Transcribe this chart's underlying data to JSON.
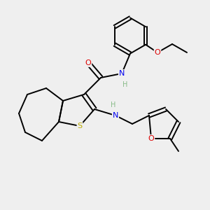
{
  "background_color": "#efefef",
  "atom_colors": {
    "C": "#000000",
    "N": "#0000ee",
    "O": "#dd0000",
    "S": "#bbaa00",
    "H": "#88bb88"
  },
  "figsize": [
    3.0,
    3.0
  ],
  "dpi": 100
}
